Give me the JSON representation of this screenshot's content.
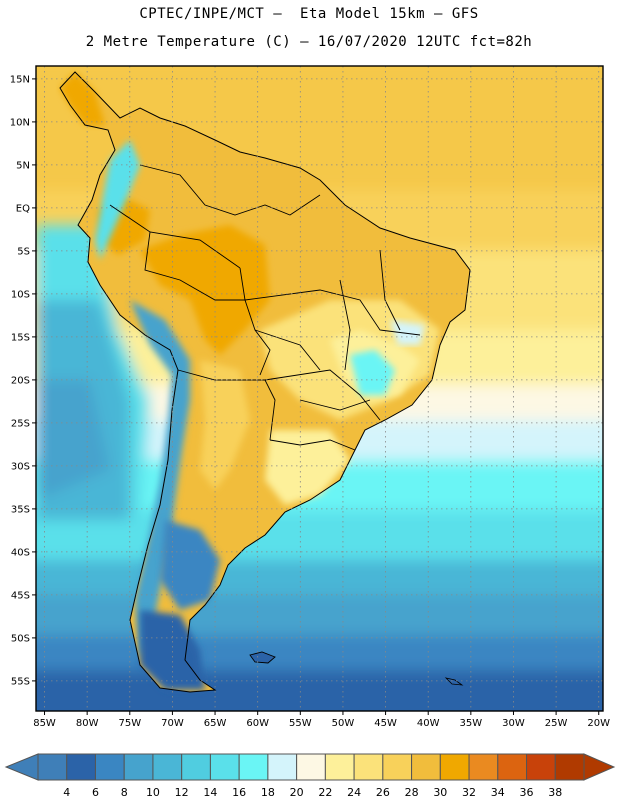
{
  "header": {
    "line1": "CPTEC/INPE/MCT –  Eta Model 15km – GFS",
    "line2": "2 Metre Temperature (C) – 16/07/2020 12UTC fct=82h"
  },
  "map": {
    "lat_labels": [
      "15N",
      "10N",
      "5N",
      "EQ",
      "5S",
      "10S",
      "15S",
      "20S",
      "25S",
      "30S",
      "35S",
      "40S",
      "45S",
      "50S",
      "55S"
    ],
    "lon_labels": [
      "85W",
      "80W",
      "75W",
      "70W",
      "65W",
      "60W",
      "55W",
      "50W",
      "45W",
      "40W",
      "35W",
      "30W",
      "25W",
      "20W"
    ],
    "extent": {
      "lon_min": -86,
      "lon_max": -19.5,
      "lat_min": -58.5,
      "lat_max": 16.5
    }
  },
  "colorbar": {
    "labels": [
      "4",
      "6",
      "8",
      "10",
      "12",
      "14",
      "16",
      "18",
      "20",
      "22",
      "24",
      "26",
      "28",
      "30",
      "32",
      "34",
      "36",
      "38"
    ],
    "colors": [
      "#3f7fb8",
      "#2b63a8",
      "#3a86c2",
      "#46a3cd",
      "#4ab6d6",
      "#50cde0",
      "#5ae0ea",
      "#6af5f5",
      "#d4f4fb",
      "#fdf8e4",
      "#fdf09a",
      "#fbe27a",
      "#f8d15a",
      "#f1bd3c",
      "#f0a800",
      "#ea8a20",
      "#dc6410",
      "#c8420a",
      "#b03a00"
    ],
    "under_color": "#3f7fb8",
    "over_color": "#b03a00"
  }
}
